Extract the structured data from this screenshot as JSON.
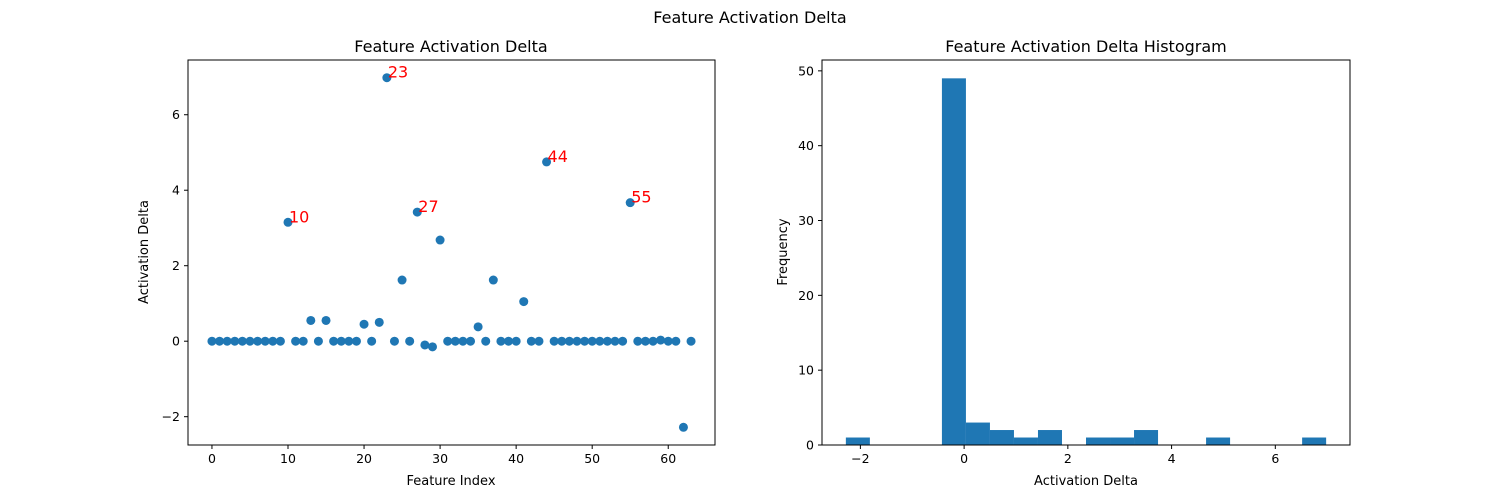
{
  "suptitle": "Feature Activation Delta",
  "colors": {
    "marker": "#1f77b4",
    "annotation": "#ff0000",
    "axis": "#000000"
  },
  "chart_data": [
    {
      "type": "scatter",
      "title": "Feature Activation Delta",
      "xlabel": "Feature Index",
      "ylabel": "Activation Delta",
      "xlim": [
        -3.15,
        66.15
      ],
      "ylim": [
        -2.75,
        7.45
      ],
      "xticks": [
        0,
        10,
        20,
        30,
        40,
        50,
        60
      ],
      "yticks": [
        -2,
        0,
        2,
        4,
        6
      ],
      "grid": false,
      "x": [
        0,
        1,
        2,
        3,
        4,
        5,
        6,
        7,
        8,
        9,
        10,
        11,
        12,
        13,
        14,
        15,
        16,
        17,
        18,
        19,
        20,
        21,
        22,
        23,
        24,
        25,
        26,
        27,
        28,
        29,
        30,
        31,
        32,
        33,
        34,
        35,
        36,
        37,
        38,
        39,
        40,
        41,
        42,
        43,
        44,
        45,
        46,
        47,
        48,
        49,
        50,
        51,
        52,
        53,
        54,
        55,
        56,
        57,
        58,
        59,
        60,
        61,
        62,
        63
      ],
      "y": [
        0,
        0,
        0,
        0,
        0,
        0,
        0,
        0,
        0,
        0,
        3.15,
        0,
        0,
        0.55,
        0,
        0.55,
        0,
        0,
        0,
        0,
        0.45,
        0,
        0.5,
        6.98,
        0,
        1.62,
        0,
        3.42,
        -0.1,
        -0.15,
        2.68,
        0,
        0,
        0,
        0,
        0.38,
        0,
        1.62,
        0,
        0,
        0,
        1.05,
        0,
        0,
        4.75,
        0,
        0,
        0,
        0,
        0,
        0,
        0,
        0,
        0,
        0,
        3.67,
        0,
        0,
        0,
        0.03,
        0,
        0,
        -2.28,
        0
      ],
      "annotations": [
        {
          "text": "10",
          "x": 10,
          "y": 3.15
        },
        {
          "text": "23",
          "x": 23,
          "y": 6.98
        },
        {
          "text": "27",
          "x": 27,
          "y": 3.42
        },
        {
          "text": "44",
          "x": 44,
          "y": 4.75
        },
        {
          "text": "55",
          "x": 55,
          "y": 3.67
        }
      ]
    },
    {
      "type": "bar",
      "subtype": "histogram",
      "title": "Feature Activation Delta Histogram",
      "xlabel": "Activation Delta",
      "ylabel": "Frequency",
      "xlim": [
        -2.74,
        7.44
      ],
      "ylim": [
        0,
        51.45
      ],
      "xticks": [
        -2,
        0,
        2,
        4,
        6
      ],
      "yticks": [
        0,
        10,
        20,
        30,
        40,
        50
      ],
      "grid": false,
      "bin_edges": [
        -2.28,
        -1.817,
        -1.354,
        -0.891,
        -0.428,
        0.035,
        0.498,
        0.961,
        1.424,
        1.887,
        2.35,
        2.813,
        3.276,
        3.739,
        4.202,
        4.665,
        5.128,
        5.591,
        6.054,
        6.517,
        6.98
      ],
      "counts": [
        1,
        0,
        0,
        0,
        49,
        3,
        2,
        1,
        2,
        0,
        1,
        1,
        2,
        0,
        0,
        1,
        0,
        0,
        0,
        1
      ]
    }
  ]
}
